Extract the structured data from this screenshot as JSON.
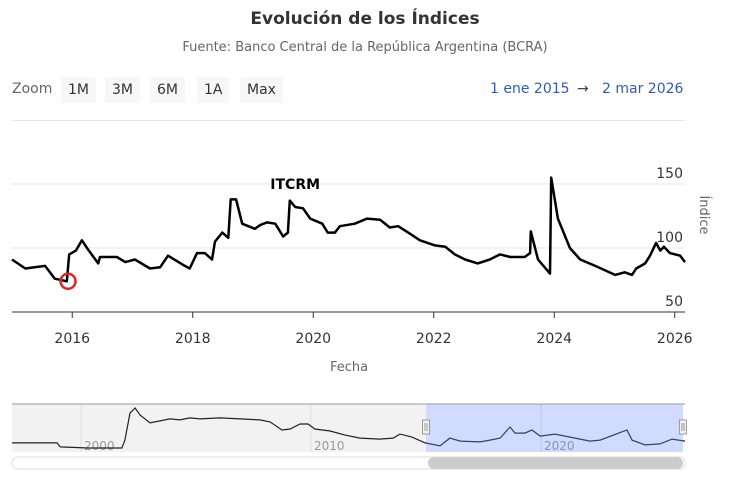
{
  "header": {
    "title": "Evolución de los Índices",
    "subtitle": "Fuente: Banco Central de la República Argentina (BCRA)"
  },
  "toolbar": {
    "zoom_label": "Zoom",
    "buttons": [
      "1M",
      "3M",
      "6M",
      "1A",
      "Max"
    ],
    "range_from": "1 ene 2015",
    "range_arrow": "→",
    "range_to": "2 mar 2026"
  },
  "colors": {
    "line": "#000000",
    "marker": "#d62728",
    "navigator_mask": "#ccd3ff",
    "grid": "#e6e6e6"
  },
  "chart_data": {
    "type": "line",
    "title": "Evolución de los Índices",
    "xlabel": "Fecha",
    "ylabel": "Índice",
    "xlim": [
      2015,
      2026.17
    ],
    "ylim": [
      50,
      160
    ],
    "xticks": [
      2016,
      2018,
      2020,
      2022,
      2024,
      2026
    ],
    "yticks": [
      50,
      100,
      150
    ],
    "grid": true,
    "series": [
      {
        "name": "ITCRM",
        "label": "ITCRM",
        "label_at": [
          2019.7,
          146
        ],
        "x": [
          2015.0,
          2015.22,
          2015.55,
          2015.71,
          2015.91,
          2015.95,
          2016.06,
          2016.16,
          2016.26,
          2016.43,
          2016.46,
          2016.74,
          2016.88,
          2017.04,
          2017.29,
          2017.46,
          2017.59,
          2017.87,
          2017.95,
          2018.07,
          2018.2,
          2018.32,
          2018.37,
          2018.49,
          2018.59,
          2018.63,
          2018.72,
          2018.82,
          2019.03,
          2019.12,
          2019.23,
          2019.37,
          2019.5,
          2019.58,
          2019.61,
          2019.7,
          2019.83,
          2019.95,
          2020.15,
          2020.24,
          2020.36,
          2020.44,
          2020.69,
          2020.89,
          2021.11,
          2021.27,
          2021.41,
          2021.61,
          2021.77,
          2022.02,
          2022.19,
          2022.35,
          2022.52,
          2022.73,
          2022.93,
          2023.1,
          2023.27,
          2023.51,
          2023.6,
          2023.61,
          2023.73,
          2023.93,
          2023.95,
          2024.06,
          2024.26,
          2024.43,
          2024.68,
          2025.01,
          2025.17,
          2025.29,
          2025.36,
          2025.51,
          2025.59,
          2025.69,
          2025.76,
          2025.82,
          2025.92,
          2026.09,
          2026.17
        ],
        "y": [
          91,
          84,
          86,
          76,
          74,
          95,
          98,
          106,
          99,
          88,
          93,
          93,
          89,
          91,
          84,
          85,
          94,
          86,
          84,
          96,
          96,
          91,
          105,
          112,
          108,
          138,
          138,
          119,
          115,
          118,
          120,
          119,
          109,
          112,
          137,
          132,
          131,
          123,
          119,
          112,
          112,
          117,
          119,
          123,
          122,
          116,
          117,
          111,
          106,
          102,
          101,
          95,
          91,
          88,
          91,
          95,
          93,
          93,
          96,
          113,
          91,
          80,
          155,
          123,
          100,
          91,
          86,
          79,
          81,
          79,
          84,
          88,
          94,
          104,
          98,
          101,
          96,
          94,
          89
        ]
      }
    ],
    "marker": {
      "x": 2015.93,
      "y": 74
    },
    "navigator": {
      "xlim": [
        1997,
        2026.26
      ],
      "ylim": [
        40,
        230
      ],
      "tick_labels": [
        "2000",
        "2010",
        "2020"
      ],
      "ticks": [
        2000,
        2010,
        2020
      ],
      "selected": [
        2015,
        2026.17
      ],
      "x": [
        1997,
        1998.96,
        1999.09,
        2000.3,
        2001.78,
        2001.91,
        2002.13,
        2002.35,
        2002.57,
        2003.0,
        2003.43,
        2003.87,
        2004.3,
        2004.74,
        2005.17,
        2006.04,
        2006.91,
        2007.78,
        2008.22,
        2008.74,
        2009.09,
        2009.52,
        2009.87,
        2010.17,
        2010.83,
        2011.48,
        2012.13,
        2013.0,
        2013.57,
        2013.87,
        2014.39,
        2014.96,
        2015.61,
        2016.04,
        2016.48,
        2017.35,
        2017.78,
        2018.22,
        2018.65,
        2018.87,
        2019.3,
        2019.61,
        2019.96,
        2020.61,
        2021.48,
        2022.13,
        2022.57,
        2023.74,
        2023.96,
        2024.52,
        2025.17,
        2025.7,
        2026.26
      ],
      "y": [
        76,
        76,
        60,
        56,
        56,
        87,
        194,
        214,
        186,
        155,
        163,
        171,
        167,
        175,
        171,
        175,
        171,
        167,
        159,
        127,
        131,
        151,
        151,
        131,
        123,
        107,
        95,
        91,
        95,
        111,
        99,
        76,
        64,
        95,
        83,
        80,
        87,
        95,
        139,
        115,
        115,
        127,
        103,
        111,
        95,
        83,
        87,
        127,
        87,
        68,
        72,
        91,
        83
      ]
    }
  }
}
